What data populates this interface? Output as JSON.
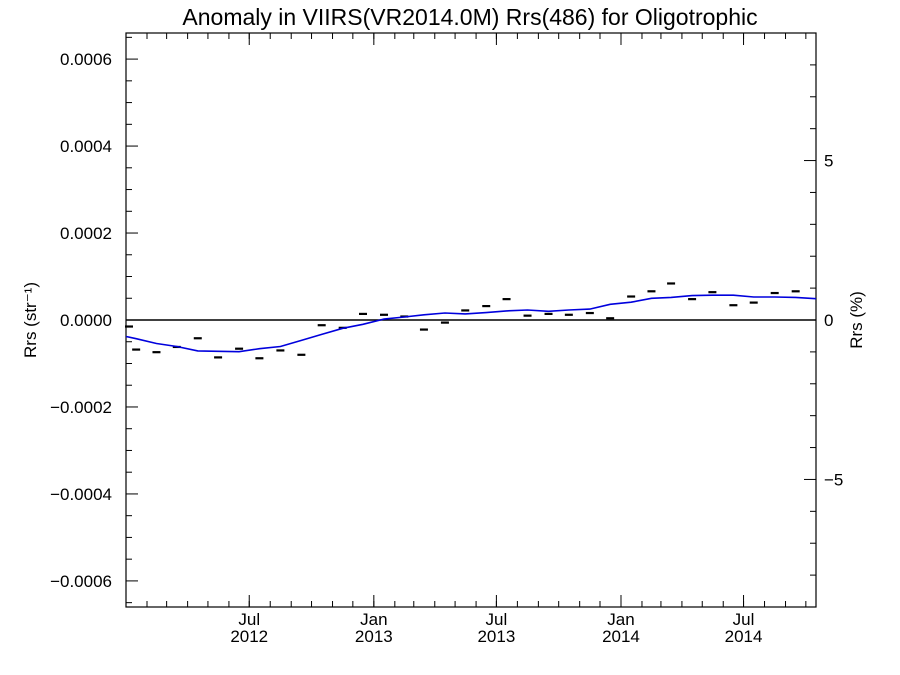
{
  "chart_data": {
    "type": "line",
    "title": "Anomaly in VIIRS(VR2014.0M) Rrs(486) for Oligotrophic",
    "ylabel": "Rrs (str⁻¹)",
    "y2label": "Rrs (%)",
    "xlim": [
      "2012-01-01",
      "2014-10-16"
    ],
    "ylim": [
      -0.00066,
      0.00066
    ],
    "y2lim": [
      -9.0,
      9.0
    ],
    "x_ticks": [
      {
        "date": "2012-07-01",
        "label_top": "Jul",
        "label_bottom": "2012"
      },
      {
        "date": "2013-01-01",
        "label_top": "Jan",
        "label_bottom": "2013"
      },
      {
        "date": "2013-07-01",
        "label_top": "Jul",
        "label_bottom": "2013"
      },
      {
        "date": "2014-01-01",
        "label_top": "Jan",
        "label_bottom": "2014"
      },
      {
        "date": "2014-07-01",
        "label_top": "Jul",
        "label_bottom": "2014"
      }
    ],
    "y_ticks": [
      {
        "value": 0.0006,
        "label": "0.0006"
      },
      {
        "value": 0.0004,
        "label": "0.0004"
      },
      {
        "value": 0.0002,
        "label": "0.0002"
      },
      {
        "value": 0.0,
        "label": "0.0000"
      },
      {
        "value": -0.0002,
        "label": "−0.0002"
      },
      {
        "value": -0.0004,
        "label": "−0.0004"
      },
      {
        "value": -0.0006,
        "label": "−0.0006"
      }
    ],
    "y2_ticks": [
      {
        "value": 5,
        "label": "5"
      },
      {
        "value": 0,
        "label": "0"
      },
      {
        "value": -5,
        "label": "−5"
      }
    ],
    "zero_line": true,
    "grid": false,
    "legend": "none",
    "series": [
      {
        "kind": "markers",
        "color": "#000000",
        "points": [
          {
            "x": "2012-01-01",
            "y": -1.5e-05
          },
          {
            "x": "2012-01-16",
            "y": -6.8e-05
          },
          {
            "x": "2012-02-15",
            "y": -7.4e-05
          },
          {
            "x": "2012-03-16",
            "y": -6.2e-05
          },
          {
            "x": "2012-04-16",
            "y": -4.2e-05
          },
          {
            "x": "2012-05-16",
            "y": -8.6e-05
          },
          {
            "x": "2012-06-16",
            "y": -6.6e-05
          },
          {
            "x": "2012-07-16",
            "y": -8.8e-05
          },
          {
            "x": "2012-08-16",
            "y": -7e-05
          },
          {
            "x": "2012-09-16",
            "y": -8e-05
          },
          {
            "x": "2012-10-16",
            "y": -1.2e-05
          },
          {
            "x": "2012-11-16",
            "y": -1.8e-05
          },
          {
            "x": "2012-12-16",
            "y": 1.4e-05
          },
          {
            "x": "2013-01-16",
            "y": 1.2e-05
          },
          {
            "x": "2013-02-15",
            "y": 8e-06
          },
          {
            "x": "2013-03-16",
            "y": -2.2e-05
          },
          {
            "x": "2013-04-16",
            "y": -6e-06
          },
          {
            "x": "2013-05-16",
            "y": 2.2e-05
          },
          {
            "x": "2013-06-16",
            "y": 3.2e-05
          },
          {
            "x": "2013-07-16",
            "y": 4.8e-05
          },
          {
            "x": "2013-08-16",
            "y": 1e-05
          },
          {
            "x": "2013-09-16",
            "y": 1.4e-05
          },
          {
            "x": "2013-10-16",
            "y": 1.2e-05
          },
          {
            "x": "2013-11-16",
            "y": 1.6e-05
          },
          {
            "x": "2013-12-16",
            "y": 4e-06
          },
          {
            "x": "2014-01-16",
            "y": 5.4e-05
          },
          {
            "x": "2014-02-15",
            "y": 6.6e-05
          },
          {
            "x": "2014-03-16",
            "y": 8.4e-05
          },
          {
            "x": "2014-04-16",
            "y": 4.8e-05
          },
          {
            "x": "2014-05-16",
            "y": 6.4e-05
          },
          {
            "x": "2014-06-16",
            "y": 3.4e-05
          },
          {
            "x": "2014-07-16",
            "y": 4e-05
          },
          {
            "x": "2014-08-16",
            "y": 6.2e-05
          },
          {
            "x": "2014-09-16",
            "y": 6.6e-05
          }
        ]
      },
      {
        "kind": "line",
        "color": "#0000dd",
        "points": [
          {
            "x": "2012-01-01",
            "y": -3.8e-05
          },
          {
            "x": "2012-01-16",
            "y": -4.3e-05
          },
          {
            "x": "2012-02-15",
            "y": -5.4e-05
          },
          {
            "x": "2012-03-16",
            "y": -6.1e-05
          },
          {
            "x": "2012-04-16",
            "y": -7.1e-05
          },
          {
            "x": "2012-05-16",
            "y": -7.2e-05
          },
          {
            "x": "2012-06-16",
            "y": -7.3e-05
          },
          {
            "x": "2012-07-16",
            "y": -6.6e-05
          },
          {
            "x": "2012-08-16",
            "y": -6.1e-05
          },
          {
            "x": "2012-09-16",
            "y": -4.7e-05
          },
          {
            "x": "2012-10-16",
            "y": -3.3e-05
          },
          {
            "x": "2012-11-16",
            "y": -1.9e-05
          },
          {
            "x": "2012-12-16",
            "y": -1e-05
          },
          {
            "x": "2013-01-16",
            "y": 2e-06
          },
          {
            "x": "2013-02-15",
            "y": 7e-06
          },
          {
            "x": "2013-03-16",
            "y": 1.2e-05
          },
          {
            "x": "2013-04-16",
            "y": 1.6e-05
          },
          {
            "x": "2013-05-16",
            "y": 1.4e-05
          },
          {
            "x": "2013-06-16",
            "y": 1.7e-05
          },
          {
            "x": "2013-07-16",
            "y": 2.1e-05
          },
          {
            "x": "2013-08-16",
            "y": 2.3e-05
          },
          {
            "x": "2013-09-16",
            "y": 2e-05
          },
          {
            "x": "2013-10-16",
            "y": 2.3e-05
          },
          {
            "x": "2013-11-16",
            "y": 2.5e-05
          },
          {
            "x": "2013-12-16",
            "y": 3.6e-05
          },
          {
            "x": "2014-01-16",
            "y": 4.1e-05
          },
          {
            "x": "2014-02-15",
            "y": 5e-05
          },
          {
            "x": "2014-03-16",
            "y": 5.2e-05
          },
          {
            "x": "2014-04-16",
            "y": 5.6e-05
          },
          {
            "x": "2014-05-16",
            "y": 5.7e-05
          },
          {
            "x": "2014-06-16",
            "y": 5.7e-05
          },
          {
            "x": "2014-07-16",
            "y": 5.3e-05
          },
          {
            "x": "2014-08-16",
            "y": 5.3e-05
          },
          {
            "x": "2014-09-16",
            "y": 5.2e-05
          },
          {
            "x": "2014-10-16",
            "y": 4.9e-05
          }
        ]
      }
    ]
  }
}
